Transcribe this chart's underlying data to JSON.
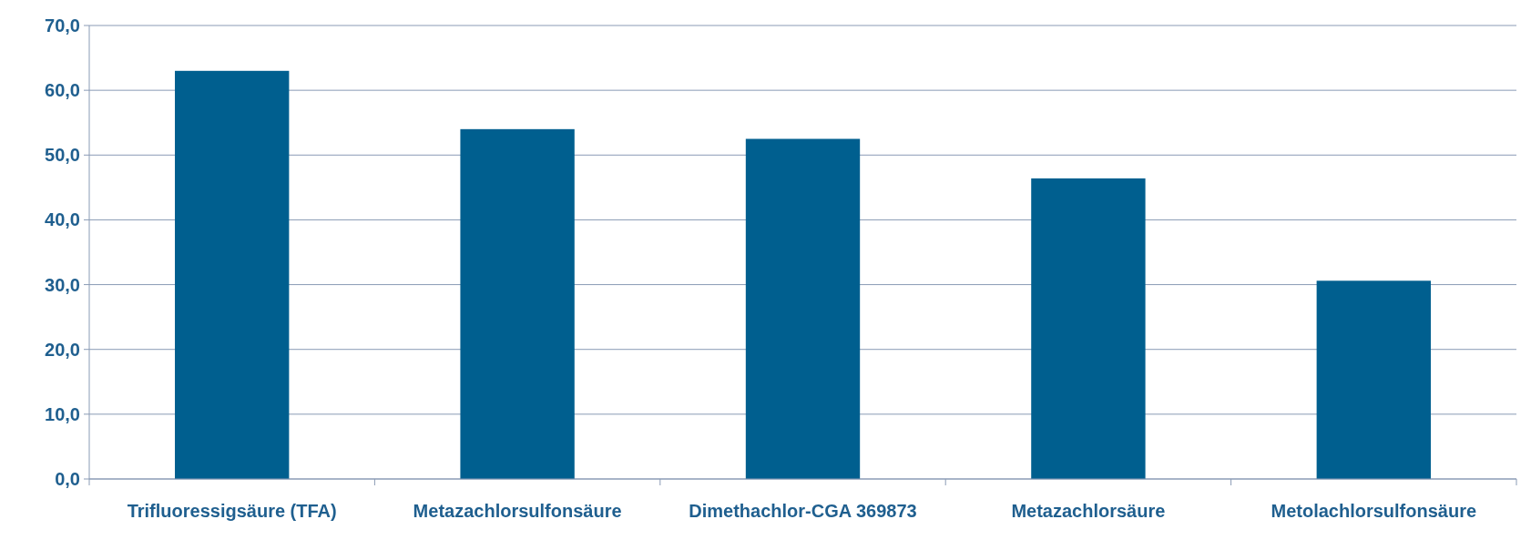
{
  "chart_data": {
    "type": "bar",
    "categories": [
      "Trifluoressigsäure (TFA)",
      "Metazachlorsulfonsäure",
      "Dimethachlor-CGA 369873",
      "Metazachlorsäure",
      "Metolachlorsulfonsäure"
    ],
    "values": [
      63.0,
      54.0,
      52.5,
      46.4,
      30.6
    ],
    "color": "#005f8f",
    "ylim": [
      0,
      70
    ],
    "yticks": [
      {
        "value": 0,
        "label": "0,0"
      },
      {
        "value": 10,
        "label": "10,0"
      },
      {
        "value": 20,
        "label": "20,0"
      },
      {
        "value": 30,
        "label": "30,0"
      },
      {
        "value": 40,
        "label": "40,0"
      },
      {
        "value": 50,
        "label": "50,0"
      },
      {
        "value": 60,
        "label": "60,0"
      },
      {
        "value": 70,
        "label": "70,0"
      }
    ],
    "grid": "y"
  }
}
